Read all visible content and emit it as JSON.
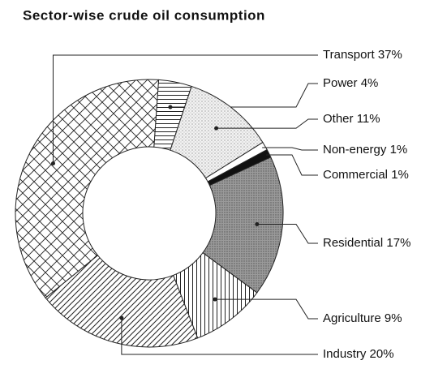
{
  "chart_data": {
    "type": "donut",
    "title": "Sector-wise crude oil consumption",
    "categories": [
      "Power",
      "Other",
      "Non-energy",
      "Commercial",
      "Residential",
      "Agriculture",
      "Industry",
      "Transport"
    ],
    "values": [
      4,
      11,
      1,
      1,
      17,
      9,
      20,
      37
    ],
    "value_labels": [
      "4%",
      "11%",
      "1%",
      "1%",
      "17%",
      "9%",
      "20%",
      "37%"
    ]
  }
}
